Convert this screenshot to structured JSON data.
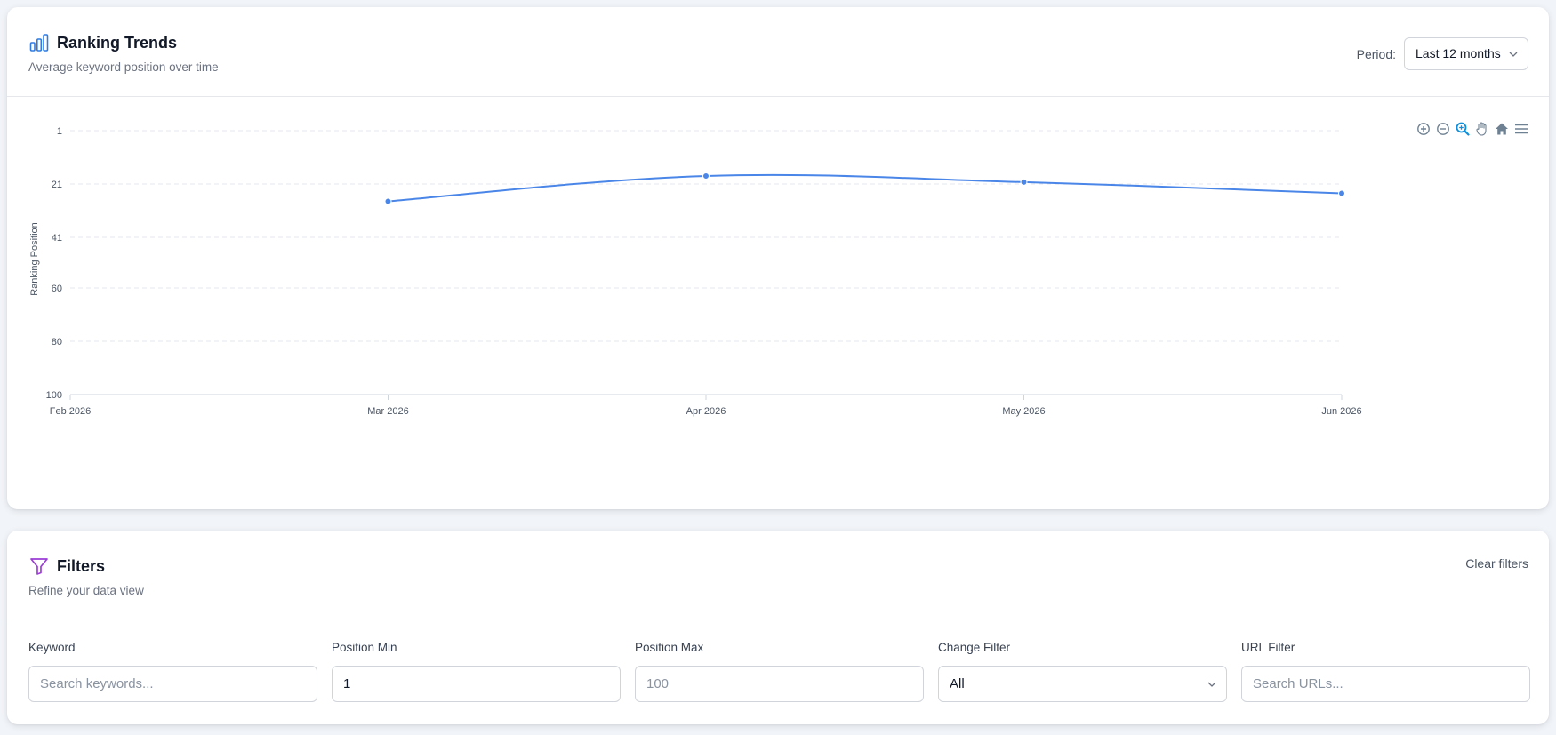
{
  "ranking_trends": {
    "title": "Ranking Trends",
    "subtitle": "Average keyword position over time",
    "icon": "bar-chart-icon",
    "period": {
      "label": "Period:",
      "selected": "Last 12 months"
    },
    "toolbar": [
      "zoom-in-icon",
      "zoom-out-icon",
      "zoom-select-icon",
      "pan-icon",
      "home-reset-icon",
      "menu-icon"
    ]
  },
  "chart_data": {
    "type": "line",
    "x": [
      "Feb 2026",
      "Mar 2026",
      "Apr 2026",
      "May 2026",
      "Jun 2026"
    ],
    "series": [
      {
        "values": [
          null,
          27.5,
          18,
          20.3,
          24.5
        ]
      }
    ],
    "xlabel": "",
    "ylabel": "Ranking Position",
    "y_ticks": [
      "1",
      "21",
      "41",
      "60",
      "80",
      "100"
    ],
    "ylim": [
      1,
      100
    ],
    "y_reversed": true,
    "grid": true,
    "line_color": "#4a86e8"
  },
  "filters": {
    "title": "Filters",
    "subtitle": "Refine your data view",
    "icon": "filter-icon",
    "clear_label": "Clear filters",
    "fields": {
      "keyword": {
        "label": "Keyword",
        "value": "",
        "placeholder": "Search keywords..."
      },
      "position_min": {
        "label": "Position Min",
        "value": "1",
        "placeholder": ""
      },
      "position_max": {
        "label": "Position Max",
        "value": "",
        "placeholder": "100"
      },
      "change_filter": {
        "label": "Change Filter",
        "selected": "All"
      },
      "url_filter": {
        "label": "URL Filter",
        "value": "",
        "placeholder": "Search URLs..."
      }
    }
  }
}
